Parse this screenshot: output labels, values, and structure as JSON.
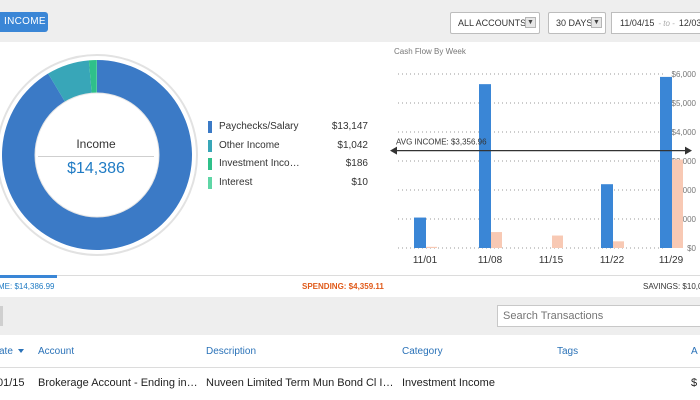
{
  "toolbar": {
    "income_tab": "INCOME",
    "accounts_label": "ALL ACCOUNTS",
    "range_label": "30 DAYS",
    "date_from": "11/04/15",
    "date_sep": "- to -",
    "date_to": "12/03"
  },
  "donut": {
    "label": "Income",
    "value": "$14,386",
    "slices": [
      {
        "name": "Paychecks/Salary",
        "amount": 13147,
        "color": "#3b7ac6"
      },
      {
        "name": "Other Income",
        "amount": 1042,
        "color": "#38a6b8"
      },
      {
        "name": "Investment Income",
        "amount": 186,
        "color": "#2fc08a"
      },
      {
        "name": "Interest",
        "amount": 10,
        "color": "#5fd6a6"
      }
    ]
  },
  "legend": [
    {
      "label": "Paychecks/Salary",
      "value": "$13,147",
      "color": "#3b7ac6"
    },
    {
      "label": "Other Income",
      "value": "$1,042",
      "color": "#38a6b8"
    },
    {
      "label": "Investment Inco…",
      "value": "$186",
      "color": "#2fc08a"
    },
    {
      "label": "Interest",
      "value": "$10",
      "color": "#5fd6a6"
    }
  ],
  "chart_data": {
    "type": "bar",
    "title": "Cash Flow By Week",
    "categories": [
      "11/01",
      "11/08",
      "11/15",
      "11/22",
      "11/29"
    ],
    "series": [
      {
        "color": "#3a86d6",
        "values": [
          1050,
          5650,
          0,
          2200,
          5900
        ]
      },
      {
        "color": "#f8c9b4",
        "values": [
          40,
          550,
          430,
          230,
          3050
        ]
      }
    ],
    "ylim": [
      0,
      6000
    ],
    "yticks": [
      "$0",
      "$1,000",
      "$2,000",
      "$3,000",
      "$4,000",
      "$5,000",
      "$6,000"
    ],
    "ytick_values": [
      0,
      1000,
      2000,
      3000,
      4000,
      5000,
      6000
    ],
    "average": {
      "label": "AVG INCOME: $3,356.96",
      "value": 3356.96
    },
    "grid": true
  },
  "summary": {
    "income": "ME: $14,386.99",
    "spending": "SPENDING: $4,359.11",
    "savings": "SAVINGS: $10,0"
  },
  "search": {
    "placeholder": "Search Transactions"
  },
  "table": {
    "headers": {
      "date": "ate",
      "account": "Account",
      "description": "Description",
      "category": "Category",
      "tags": "Tags",
      "amount": "A"
    },
    "rows": [
      {
        "date": "01/15",
        "account": "Brokerage Account - Ending in…",
        "description": "Nuveen Limited Term Mun Bond Cl I…",
        "category": "Investment Income",
        "tags": "",
        "amount": "$"
      }
    ]
  }
}
